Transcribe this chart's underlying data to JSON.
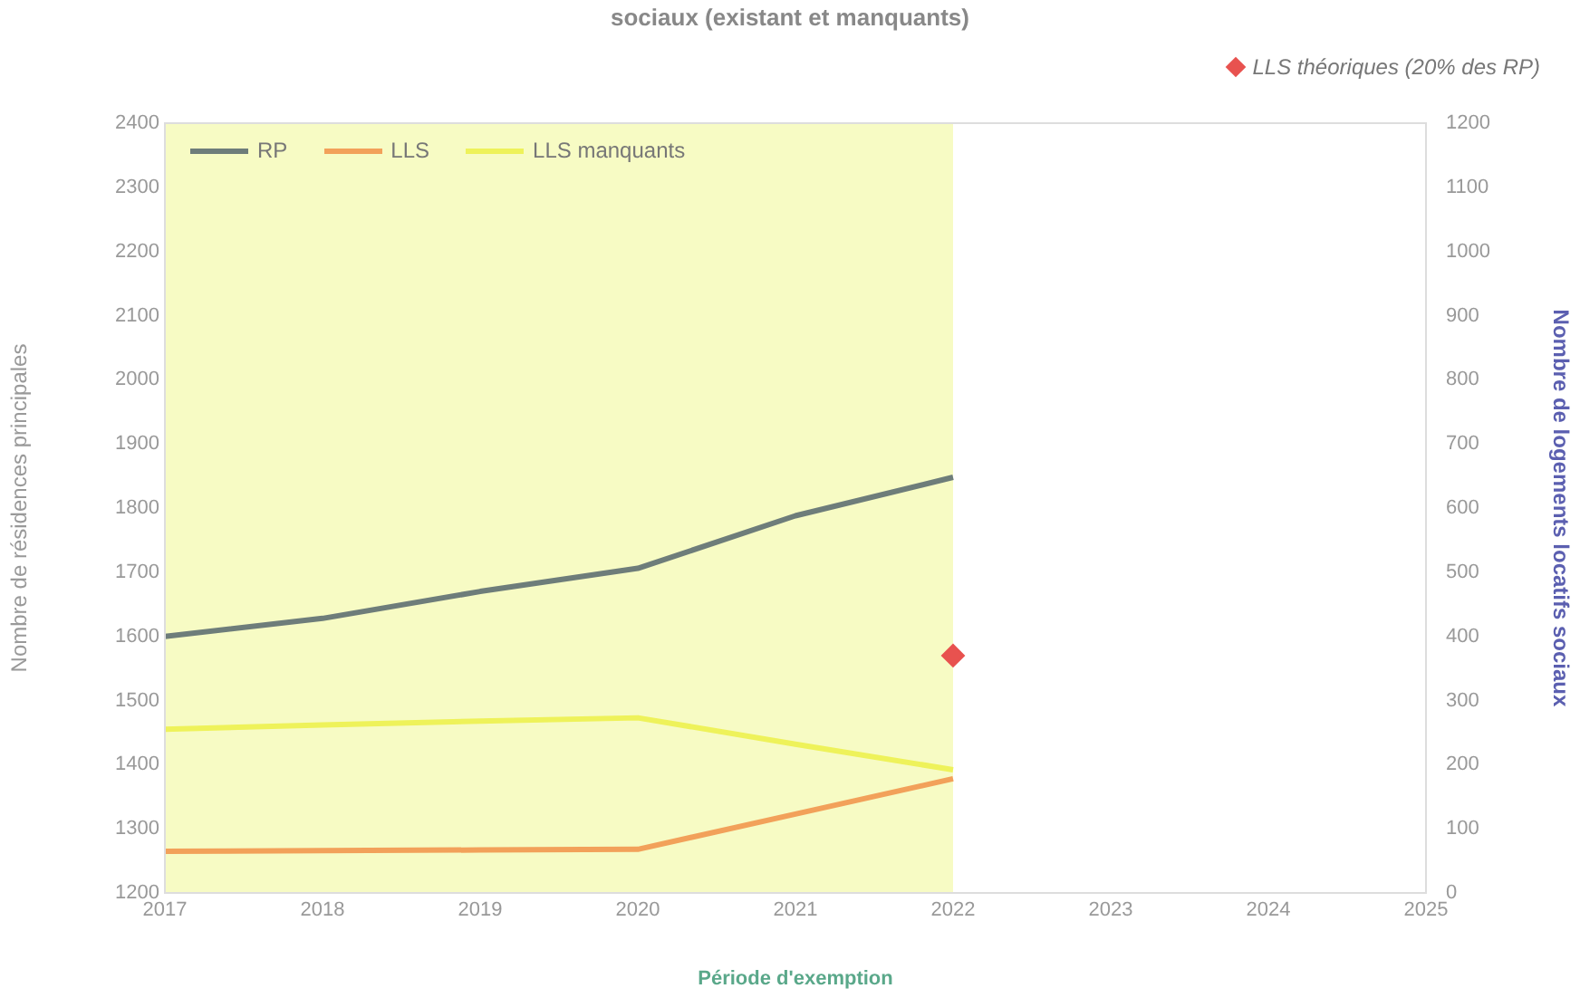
{
  "chart_data": {
    "type": "line",
    "title": "sociaux (existant et manquants)",
    "xlabel": "Période d'exemption",
    "ylabel": "Nombre de résidences principales",
    "y2label": "Nombre de logements locatifs sociaux",
    "x": [
      2017,
      2018,
      2019,
      2020,
      2021,
      2022
    ],
    "series": [
      {
        "name": "RP",
        "color": "#6e7d7a",
        "values": [
          1600,
          1628,
          1670,
          1706,
          1788,
          1848
        ]
      },
      {
        "name": "LLS",
        "color": "#f2a15a",
        "axis": "y2",
        "values": [
          65,
          66,
          67,
          68,
          123,
          178
        ]
      },
      {
        "name": "LLS manquants",
        "color": "#eef25a",
        "axis": "y2",
        "values": [
          255,
          262,
          268,
          273,
          232,
          192
        ]
      },
      {
        "name": "LLS théoriques (20% des RP)",
        "type": "scatter",
        "marker": "diamond",
        "color": "#e8524f",
        "axis": "y2",
        "values": [
          null,
          null,
          null,
          null,
          null,
          370
        ]
      }
    ],
    "xlim": [
      2017,
      2025
    ],
    "xticks": [
      2017,
      2018,
      2019,
      2020,
      2021,
      2022,
      2023,
      2024,
      2025
    ],
    "ylim": [
      1200,
      2400
    ],
    "yticks": [
      1200,
      1300,
      1400,
      1500,
      1600,
      1700,
      1800,
      1900,
      2000,
      2100,
      2200,
      2300,
      2400
    ],
    "y2lim": [
      0,
      1200
    ],
    "y2ticks": [
      0,
      100,
      200,
      300,
      400,
      500,
      600,
      700,
      800,
      900,
      1000,
      1100,
      1200
    ],
    "bands": [
      {
        "axis": "x",
        "from": 2017,
        "to": 2022,
        "color": "#f7fbc4"
      }
    ],
    "legend": "top",
    "grid": false,
    "marker": "none",
    "line_style": "solid"
  }
}
